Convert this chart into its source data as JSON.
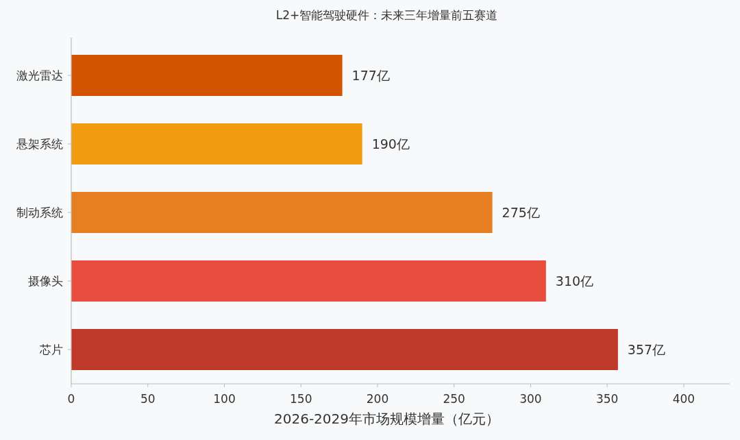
{
  "chart_data": {
    "type": "bar",
    "orientation": "horizontal",
    "title": "L2+智能驾驶硬件：未来三年增量前五赛道",
    "xlabel": "2026-2029年市场规模增量（亿元）",
    "categories": [
      "激光雷达",
      "悬架系统",
      "制动系统",
      "摄像头",
      "芯片"
    ],
    "values": [
      177,
      190,
      275,
      310,
      357
    ],
    "colors": [
      "#d35400",
      "#f39c12",
      "#e67e22",
      "#e74c3c",
      "#c0392b"
    ],
    "value_labels": [
      "177亿",
      "190亿",
      "275亿",
      "310亿",
      "357亿"
    ],
    "xlim": [
      0,
      430
    ],
    "xticks": [
      0,
      50,
      100,
      150,
      200,
      250,
      300,
      350,
      400
    ],
    "grid": false
  }
}
